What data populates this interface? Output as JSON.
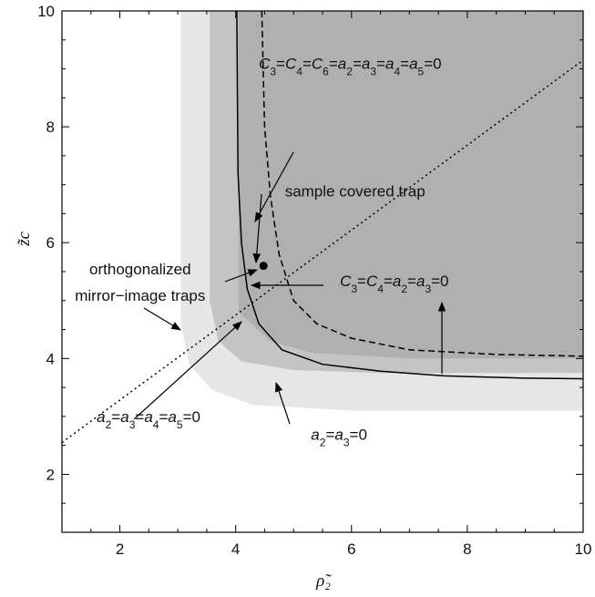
{
  "chart_data": {
    "type": "line",
    "xlabel": "ρ̃₂",
    "ylabel": "z̃c",
    "xlim": [
      1,
      10
    ],
    "ylim": [
      1,
      10
    ],
    "x_ticks": [
      "2",
      "4",
      "6",
      "8",
      "10"
    ],
    "y_ticks": [
      "2",
      "4",
      "6",
      "8",
      "10"
    ],
    "grid": false,
    "regions": [
      {
        "name": "a2=a3=0",
        "fill": "#e6e6e6",
        "boundary": [
          [
            3.05,
            10
          ],
          [
            3.05,
            4.6
          ],
          [
            3.2,
            3.9
          ],
          [
            3.6,
            3.45
          ],
          [
            4.3,
            3.2
          ],
          [
            6,
            3.1
          ],
          [
            10,
            3.1
          ]
        ]
      },
      {
        "name": "a2=a3=a4=a5=0",
        "fill": "#c4c4c4",
        "boundary": [
          [
            3.55,
            10
          ],
          [
            3.55,
            5.0
          ],
          [
            3.7,
            4.3
          ],
          [
            4.1,
            3.95
          ],
          [
            5.0,
            3.8
          ],
          [
            6.5,
            3.75
          ],
          [
            10,
            3.75
          ]
        ]
      },
      {
        "name": "C3=C4=a2=a3=0",
        "fill": "#b0b0b0",
        "boundary": [
          [
            4.05,
            10
          ],
          [
            4.05,
            4.8
          ],
          [
            4.6,
            4.3
          ],
          [
            5.3,
            4.1
          ],
          [
            7,
            4.0
          ],
          [
            10,
            4.0
          ]
        ]
      }
    ],
    "series": [
      {
        "style": "solid",
        "points": [
          [
            4.02,
            10
          ],
          [
            4.04,
            7.2
          ],
          [
            4.1,
            6
          ],
          [
            4.2,
            5.2
          ],
          [
            4.4,
            4.6
          ],
          [
            4.8,
            4.15
          ],
          [
            5.5,
            3.9
          ],
          [
            6.5,
            3.78
          ],
          [
            7.6,
            3.7
          ],
          [
            9,
            3.66
          ],
          [
            10,
            3.65
          ]
        ]
      },
      {
        "style": "dashed",
        "points": [
          [
            4.45,
            10
          ],
          [
            4.5,
            8.0
          ],
          [
            4.6,
            6.8
          ],
          [
            4.75,
            5.8
          ],
          [
            5.0,
            5.0
          ],
          [
            5.4,
            4.6
          ],
          [
            6,
            4.35
          ],
          [
            7,
            4.15
          ],
          [
            8.5,
            4.07
          ],
          [
            10,
            4.04
          ]
        ]
      },
      {
        "style": "dotted",
        "points": [
          [
            1,
            2.55
          ],
          [
            10,
            9.15
          ]
        ]
      }
    ],
    "points": [
      {
        "x": 4.48,
        "y": 5.6
      }
    ],
    "annotations": [
      {
        "text": "sample covered trap",
        "tx": 4.85,
        "ty": 6.8,
        "arrow_to": [
          4.48,
          5.65
        ]
      },
      {
        "text": "orthogonalized",
        "tx": 2.35,
        "ty": 5.45
      },
      {
        "text": "mirror−image traps",
        "tx": 2.35,
        "ty": 5.0
      },
      {
        "text_parts": [
          [
            "C",
            ""
          ],
          [
            "3",
            "sub"
          ],
          [
            "=",
            ""
          ],
          [
            "C",
            ""
          ],
          [
            "4",
            "sub"
          ],
          [
            "=",
            ""
          ],
          [
            "C",
            ""
          ],
          [
            "6",
            "sub"
          ],
          [
            "=",
            ""
          ],
          [
            "a",
            ""
          ],
          [
            "2",
            "sub"
          ],
          [
            "=",
            ""
          ],
          [
            "a",
            ""
          ],
          [
            "3",
            "sub"
          ],
          [
            "=",
            ""
          ],
          [
            "a",
            ""
          ],
          [
            "4",
            "sub"
          ],
          [
            "=",
            ""
          ],
          [
            "a",
            ""
          ],
          [
            "5",
            "sub"
          ],
          [
            "=0",
            ""
          ]
        ],
        "tx": 4.4,
        "ty": 9.0
      },
      {
        "text_parts": [
          [
            "C",
            ""
          ],
          [
            "3",
            "sub"
          ],
          [
            "=",
            ""
          ],
          [
            "C",
            ""
          ],
          [
            "4",
            "sub"
          ],
          [
            "=",
            ""
          ],
          [
            "a",
            ""
          ],
          [
            "2",
            "sub"
          ],
          [
            "=",
            ""
          ],
          [
            "a",
            ""
          ],
          [
            "3",
            "sub"
          ],
          [
            "=0",
            ""
          ]
        ],
        "tx": 5.8,
        "ty": 5.25
      },
      {
        "text_parts": [
          [
            "a",
            ""
          ],
          [
            "2",
            "sub"
          ],
          [
            "=",
            ""
          ],
          [
            "a",
            ""
          ],
          [
            "3",
            "sub"
          ],
          [
            "=",
            ""
          ],
          [
            "a",
            ""
          ],
          [
            "4",
            "sub"
          ],
          [
            "=",
            ""
          ],
          [
            "a",
            ""
          ],
          [
            "5",
            "sub"
          ],
          [
            "=0",
            ""
          ]
        ],
        "tx": 1.6,
        "ty": 2.9
      },
      {
        "text_parts": [
          [
            "a",
            ""
          ],
          [
            "2",
            "sub"
          ],
          [
            "=",
            ""
          ],
          [
            "a",
            ""
          ],
          [
            "3",
            "sub"
          ],
          [
            "=0",
            ""
          ]
        ],
        "tx": 5.3,
        "ty": 2.6
      }
    ]
  }
}
